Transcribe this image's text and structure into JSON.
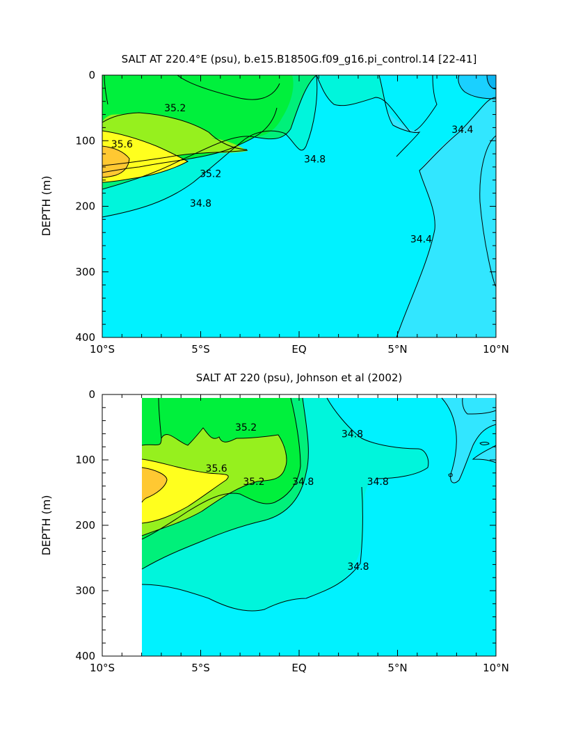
{
  "chart_data": [
    {
      "type": "contour",
      "title": "SALT AT 220.4°E (psu), b.e15.B1850G.f09_g16.pi_control.14 [22-41]",
      "xlabel": "",
      "ylabel": "DEPTH (m)",
      "x_tick_labels": [
        "10°S",
        "5°S",
        "EQ",
        "5°N",
        "10°N"
      ],
      "x_tick_values": [
        -10,
        -5,
        0,
        5,
        10
      ],
      "y_tick_labels": [
        "0",
        "100",
        "200",
        "300",
        "400"
      ],
      "y_tick_values": [
        0,
        100,
        200,
        300,
        400
      ],
      "xlim": [
        -10,
        10
      ],
      "ylim": [
        400,
        0
      ],
      "y_inverted": true,
      "contour_interval": 0.2,
      "contour_labels": [
        {
          "text": "35.2",
          "x": -6.3,
          "y": 50
        },
        {
          "text": "35.6",
          "x": -9.0,
          "y": 105
        },
        {
          "text": "35.2",
          "x": -4.5,
          "y": 150
        },
        {
          "text": "34.8",
          "x": -5.0,
          "y": 195
        },
        {
          "text": "34.8",
          "x": 0.8,
          "y": 128
        },
        {
          "text": "34.4",
          "x": 8.3,
          "y": 83
        },
        {
          "text": "34.4",
          "x": 6.2,
          "y": 250
        }
      ],
      "colors": {
        "c_34_2": "#1ad0ff",
        "c_34_4": "#32e6ff",
        "c_34_6": "#00f2ff",
        "c_34_8": "#00f5dc",
        "c_35_0": "#00f07a",
        "c_35_2": "#00f03c",
        "c_35_4": "#96f01e",
        "c_35_6": "#ffff1e",
        "c_35_8": "#ffc832"
      }
    },
    {
      "type": "contour",
      "title": "SALT AT 220 (psu), Johnson et al (2002)",
      "xlabel": "",
      "ylabel": "DEPTH (m)",
      "x_tick_labels": [
        "10°S",
        "5°S",
        "EQ",
        "5°N",
        "10°N"
      ],
      "x_tick_values": [
        -10,
        -5,
        0,
        5,
        10
      ],
      "y_tick_labels": [
        "0",
        "100",
        "200",
        "300",
        "400"
      ],
      "y_tick_values": [
        0,
        100,
        200,
        300,
        400
      ],
      "xlim": [
        -10,
        10
      ],
      "ylim": [
        400,
        0
      ],
      "y_inverted": true,
      "data_x_range": [
        -8,
        10
      ],
      "contour_interval": 0.2,
      "contour_labels": [
        {
          "text": "35.2",
          "x": -2.7,
          "y": 50
        },
        {
          "text": "35.6",
          "x": -4.2,
          "y": 113
        },
        {
          "text": "35.2",
          "x": -2.3,
          "y": 133
        },
        {
          "text": "34.8",
          "x": 2.7,
          "y": 60
        },
        {
          "text": "34.8",
          "x": 0.2,
          "y": 133
        },
        {
          "text": "34.8",
          "x": 3.0,
          "y": 263
        },
        {
          "text": "34.8",
          "x": 4.0,
          "y": 133
        }
      ],
      "colors": {
        "c_34_6": "#00f2ff",
        "c_34_8": "#00f5dc",
        "c_35_0": "#00f07a",
        "c_35_2": "#00f03c",
        "c_35_4": "#96f01e",
        "c_35_6": "#ffff1e",
        "c_35_8": "#ffc832",
        "c_34_4": "#1ad0ff"
      }
    }
  ]
}
